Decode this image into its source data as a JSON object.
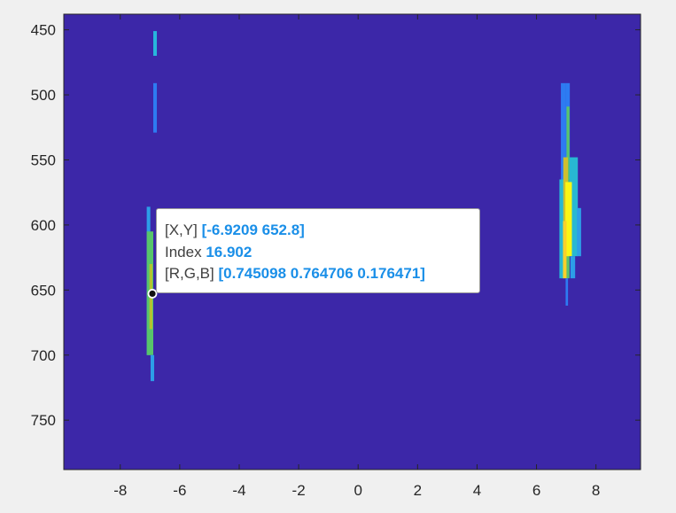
{
  "chart_data": {
    "type": "heatmap",
    "title": "",
    "xlabel": "",
    "ylabel": "",
    "xlim": [
      -9.9,
      9.5
    ],
    "ylim": [
      788,
      438
    ],
    "y_reversed": true,
    "grid": false,
    "x_ticks": [
      -8,
      -6,
      -4,
      -2,
      0,
      2,
      4,
      6,
      8
    ],
    "y_ticks": [
      450,
      500,
      550,
      600,
      650,
      700,
      750
    ],
    "background_color": "#3c27a8",
    "axes_outline_color": "#262626",
    "cells": [
      {
        "x": -6.83,
        "y0": 451,
        "y1": 470,
        "width": 0.12,
        "color": "#27b6dc"
      },
      {
        "x": -6.83,
        "y0": 491,
        "y1": 529,
        "width": 0.12,
        "color": "#2d7bf2"
      },
      {
        "x": -7.05,
        "y0": 586,
        "y1": 700,
        "width": 0.12,
        "color": "#2c9ee8"
      },
      {
        "x": -7.0,
        "y0": 605,
        "y1": 700,
        "width": 0.22,
        "color": "#58c56b"
      },
      {
        "x": -6.97,
        "y0": 630,
        "y1": 680,
        "width": 0.1,
        "color": "#b4c330"
      },
      {
        "x": -6.92,
        "y0": 700,
        "y1": 720,
        "width": 0.12,
        "color": "#2c9ee8"
      },
      {
        "x": 6.9,
        "y0": 491,
        "y1": 641,
        "width": 0.16,
        "color": "#2d7bf2"
      },
      {
        "x": 7.05,
        "y0": 491,
        "y1": 565,
        "width": 0.14,
        "color": "#2d7bf2"
      },
      {
        "x": 7.06,
        "y0": 509,
        "y1": 641,
        "width": 0.1,
        "color": "#59c46c"
      },
      {
        "x": 6.85,
        "y0": 565,
        "y1": 641,
        "width": 0.16,
        "color": "#28b8d2"
      },
      {
        "x": 7.25,
        "y0": 548,
        "y1": 624,
        "width": 0.28,
        "color": "#28b8d2"
      },
      {
        "x": 7.43,
        "y0": 587,
        "y1": 624,
        "width": 0.14,
        "color": "#2c9ee8"
      },
      {
        "x": 6.98,
        "y0": 548,
        "y1": 624,
        "width": 0.16,
        "color": "#cfbf2e"
      },
      {
        "x": 7.08,
        "y0": 567,
        "y1": 624,
        "width": 0.22,
        "color": "#f9f614"
      },
      {
        "x": 6.95,
        "y0": 597,
        "y1": 641,
        "width": 0.12,
        "color": "#f9d02b"
      },
      {
        "x": 7.22,
        "y0": 624,
        "y1": 641,
        "width": 0.16,
        "color": "#2c9ee8"
      },
      {
        "x": 7.02,
        "y0": 641,
        "y1": 662,
        "width": 0.08,
        "color": "#2d7bf2"
      }
    ],
    "datatip": {
      "x": -6.92,
      "y": 652.8,
      "rows": [
        {
          "label": "[X,Y]",
          "value": "[-6.9209 652.8]"
        },
        {
          "label": "Index",
          "value": "16.902"
        },
        {
          "label": "[R,G,B]",
          "value": "[0.745098 0.764706 0.176471]"
        }
      ]
    }
  }
}
